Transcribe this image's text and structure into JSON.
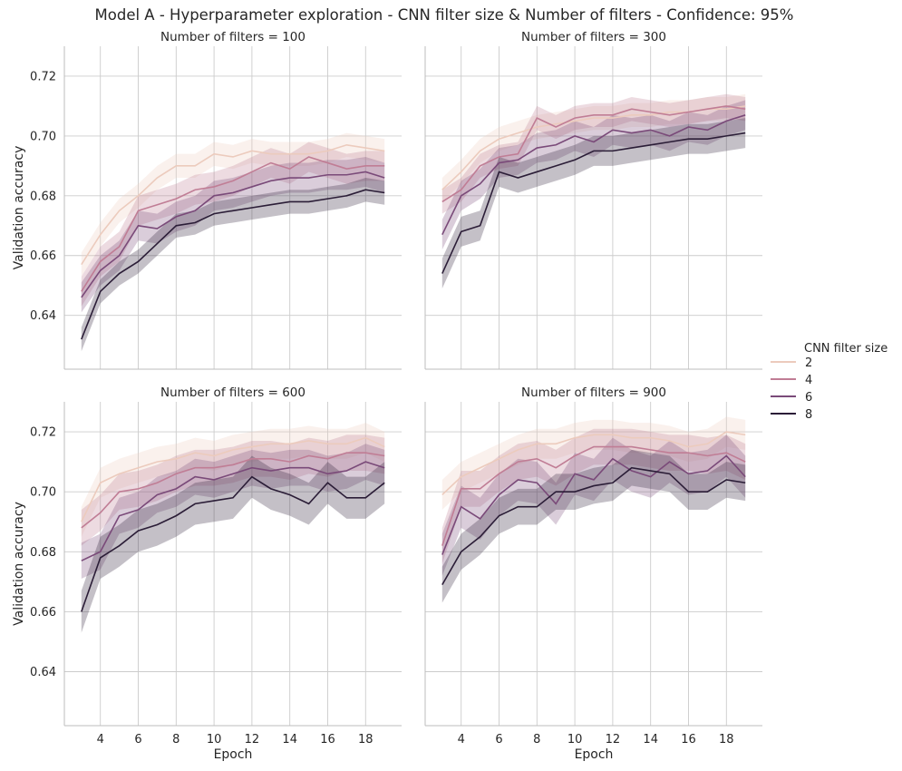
{
  "title": "Model A - Hyperparameter exploration - CNN filter size & Number of filters - Confidence: 95%",
  "legend": {
    "title": "CNN filter size",
    "placement": "right"
  },
  "axes": {
    "xlabel": "Epoch",
    "ylabel": "Validation accuracy",
    "xticks": [
      4,
      6,
      8,
      10,
      12,
      14,
      16,
      18
    ],
    "yticks": [
      0.64,
      0.66,
      0.68,
      0.7,
      0.72
    ]
  },
  "colors": {
    "2": "#eccbbd",
    "4": "#c07d95",
    "6": "#7a4a79",
    "8": "#2b1d37"
  },
  "chart_data": [
    {
      "type": "line",
      "title": "Number of filters = 100",
      "xlabel": "",
      "ylabel": "Validation accuracy",
      "xlim": [
        2.1,
        19.9
      ],
      "ylim": [
        0.622,
        0.73
      ],
      "grid": true,
      "x": [
        3,
        4,
        5,
        6,
        7,
        8,
        9,
        10,
        11,
        12,
        13,
        14,
        15,
        16,
        17,
        18,
        19
      ],
      "series": [
        {
          "name": "2",
          "values": [
            0.657,
            0.667,
            0.675,
            0.68,
            0.686,
            0.69,
            0.69,
            0.694,
            0.693,
            0.695,
            0.694,
            0.694,
            0.694,
            0.695,
            0.697,
            0.696,
            0.695
          ],
          "ci": 0.004
        },
        {
          "name": "4",
          "values": [
            0.648,
            0.658,
            0.663,
            0.675,
            0.677,
            0.679,
            0.682,
            0.683,
            0.685,
            0.688,
            0.691,
            0.689,
            0.693,
            0.691,
            0.689,
            0.69,
            0.69
          ],
          "ci": 0.005
        },
        {
          "name": "6",
          "values": [
            0.646,
            0.655,
            0.66,
            0.67,
            0.669,
            0.673,
            0.675,
            0.68,
            0.681,
            0.683,
            0.685,
            0.686,
            0.686,
            0.687,
            0.687,
            0.688,
            0.686
          ],
          "ci": 0.005
        },
        {
          "name": "8",
          "values": [
            0.632,
            0.648,
            0.654,
            0.658,
            0.664,
            0.67,
            0.671,
            0.674,
            0.675,
            0.676,
            0.677,
            0.678,
            0.678,
            0.679,
            0.68,
            0.682,
            0.681
          ],
          "ci": 0.004
        }
      ]
    },
    {
      "type": "line",
      "title": "Number of filters = 300",
      "xlabel": "",
      "ylabel": "",
      "xlim": [
        2.1,
        19.9
      ],
      "ylim": [
        0.622,
        0.73
      ],
      "grid": true,
      "x": [
        3,
        4,
        5,
        6,
        7,
        8,
        9,
        10,
        11,
        12,
        13,
        14,
        15,
        16,
        17,
        18,
        19
      ],
      "series": [
        {
          "name": "2",
          "values": [
            0.682,
            0.688,
            0.695,
            0.699,
            0.701,
            0.703,
            0.704,
            0.705,
            0.706,
            0.706,
            0.707,
            0.707,
            0.708,
            0.708,
            0.709,
            0.709,
            0.71
          ],
          "ci": 0.004
        },
        {
          "name": "4",
          "values": [
            0.678,
            0.682,
            0.69,
            0.693,
            0.694,
            0.706,
            0.703,
            0.706,
            0.707,
            0.707,
            0.709,
            0.708,
            0.707,
            0.708,
            0.709,
            0.71,
            0.709
          ],
          "ci": 0.004
        },
        {
          "name": "6",
          "values": [
            0.667,
            0.68,
            0.684,
            0.691,
            0.692,
            0.696,
            0.697,
            0.7,
            0.698,
            0.702,
            0.701,
            0.702,
            0.7,
            0.703,
            0.702,
            0.705,
            0.707
          ],
          "ci": 0.005
        },
        {
          "name": "8",
          "values": [
            0.654,
            0.668,
            0.67,
            0.688,
            0.686,
            0.688,
            0.69,
            0.692,
            0.695,
            0.695,
            0.696,
            0.697,
            0.698,
            0.699,
            0.699,
            0.7,
            0.701
          ],
          "ci": 0.005
        }
      ]
    },
    {
      "type": "line",
      "title": "Number of filters = 600",
      "xlabel": "Epoch",
      "ylabel": "Validation accuracy",
      "xlim": [
        2.1,
        19.9
      ],
      "ylim": [
        0.622,
        0.73
      ],
      "grid": true,
      "x": [
        3,
        4,
        5,
        6,
        7,
        8,
        9,
        10,
        11,
        12,
        13,
        14,
        15,
        16,
        17,
        18,
        19
      ],
      "series": [
        {
          "name": "2",
          "values": [
            0.69,
            0.703,
            0.706,
            0.708,
            0.71,
            0.711,
            0.713,
            0.712,
            0.714,
            0.715,
            0.716,
            0.716,
            0.717,
            0.716,
            0.716,
            0.718,
            0.715
          ],
          "ci": 0.005
        },
        {
          "name": "4",
          "values": [
            0.688,
            0.693,
            0.7,
            0.701,
            0.703,
            0.706,
            0.708,
            0.708,
            0.709,
            0.711,
            0.711,
            0.71,
            0.712,
            0.711,
            0.713,
            0.713,
            0.712
          ],
          "ci": 0.006
        },
        {
          "name": "6",
          "values": [
            0.677,
            0.68,
            0.692,
            0.694,
            0.699,
            0.701,
            0.705,
            0.704,
            0.706,
            0.708,
            0.707,
            0.708,
            0.708,
            0.706,
            0.707,
            0.71,
            0.708
          ],
          "ci": 0.006
        },
        {
          "name": "8",
          "values": [
            0.66,
            0.678,
            0.682,
            0.687,
            0.689,
            0.692,
            0.696,
            0.697,
            0.698,
            0.705,
            0.701,
            0.699,
            0.696,
            0.703,
            0.698,
            0.698,
            0.703
          ],
          "ci": 0.007
        }
      ]
    },
    {
      "type": "line",
      "title": "Number of filters = 900",
      "xlabel": "Epoch",
      "ylabel": "",
      "xlim": [
        2.1,
        19.9
      ],
      "ylim": [
        0.622,
        0.73
      ],
      "grid": true,
      "x": [
        3,
        4,
        5,
        6,
        7,
        8,
        9,
        10,
        11,
        12,
        13,
        14,
        15,
        16,
        17,
        18,
        19
      ],
      "series": [
        {
          "name": "2",
          "values": [
            0.699,
            0.705,
            0.708,
            0.711,
            0.714,
            0.716,
            0.716,
            0.718,
            0.719,
            0.719,
            0.718,
            0.718,
            0.717,
            0.715,
            0.716,
            0.72,
            0.719
          ],
          "ci": 0.005
        },
        {
          "name": "4",
          "values": [
            0.682,
            0.701,
            0.701,
            0.706,
            0.71,
            0.711,
            0.708,
            0.712,
            0.715,
            0.715,
            0.715,
            0.714,
            0.713,
            0.713,
            0.712,
            0.713,
            0.71
          ],
          "ci": 0.006
        },
        {
          "name": "6",
          "values": [
            0.679,
            0.695,
            0.691,
            0.699,
            0.704,
            0.703,
            0.696,
            0.706,
            0.704,
            0.711,
            0.707,
            0.705,
            0.71,
            0.706,
            0.707,
            0.712,
            0.705
          ],
          "ci": 0.007
        },
        {
          "name": "8",
          "values": [
            0.669,
            0.68,
            0.685,
            0.692,
            0.695,
            0.695,
            0.7,
            0.7,
            0.702,
            0.703,
            0.708,
            0.707,
            0.706,
            0.7,
            0.7,
            0.704,
            0.703
          ],
          "ci": 0.006
        }
      ]
    }
  ]
}
